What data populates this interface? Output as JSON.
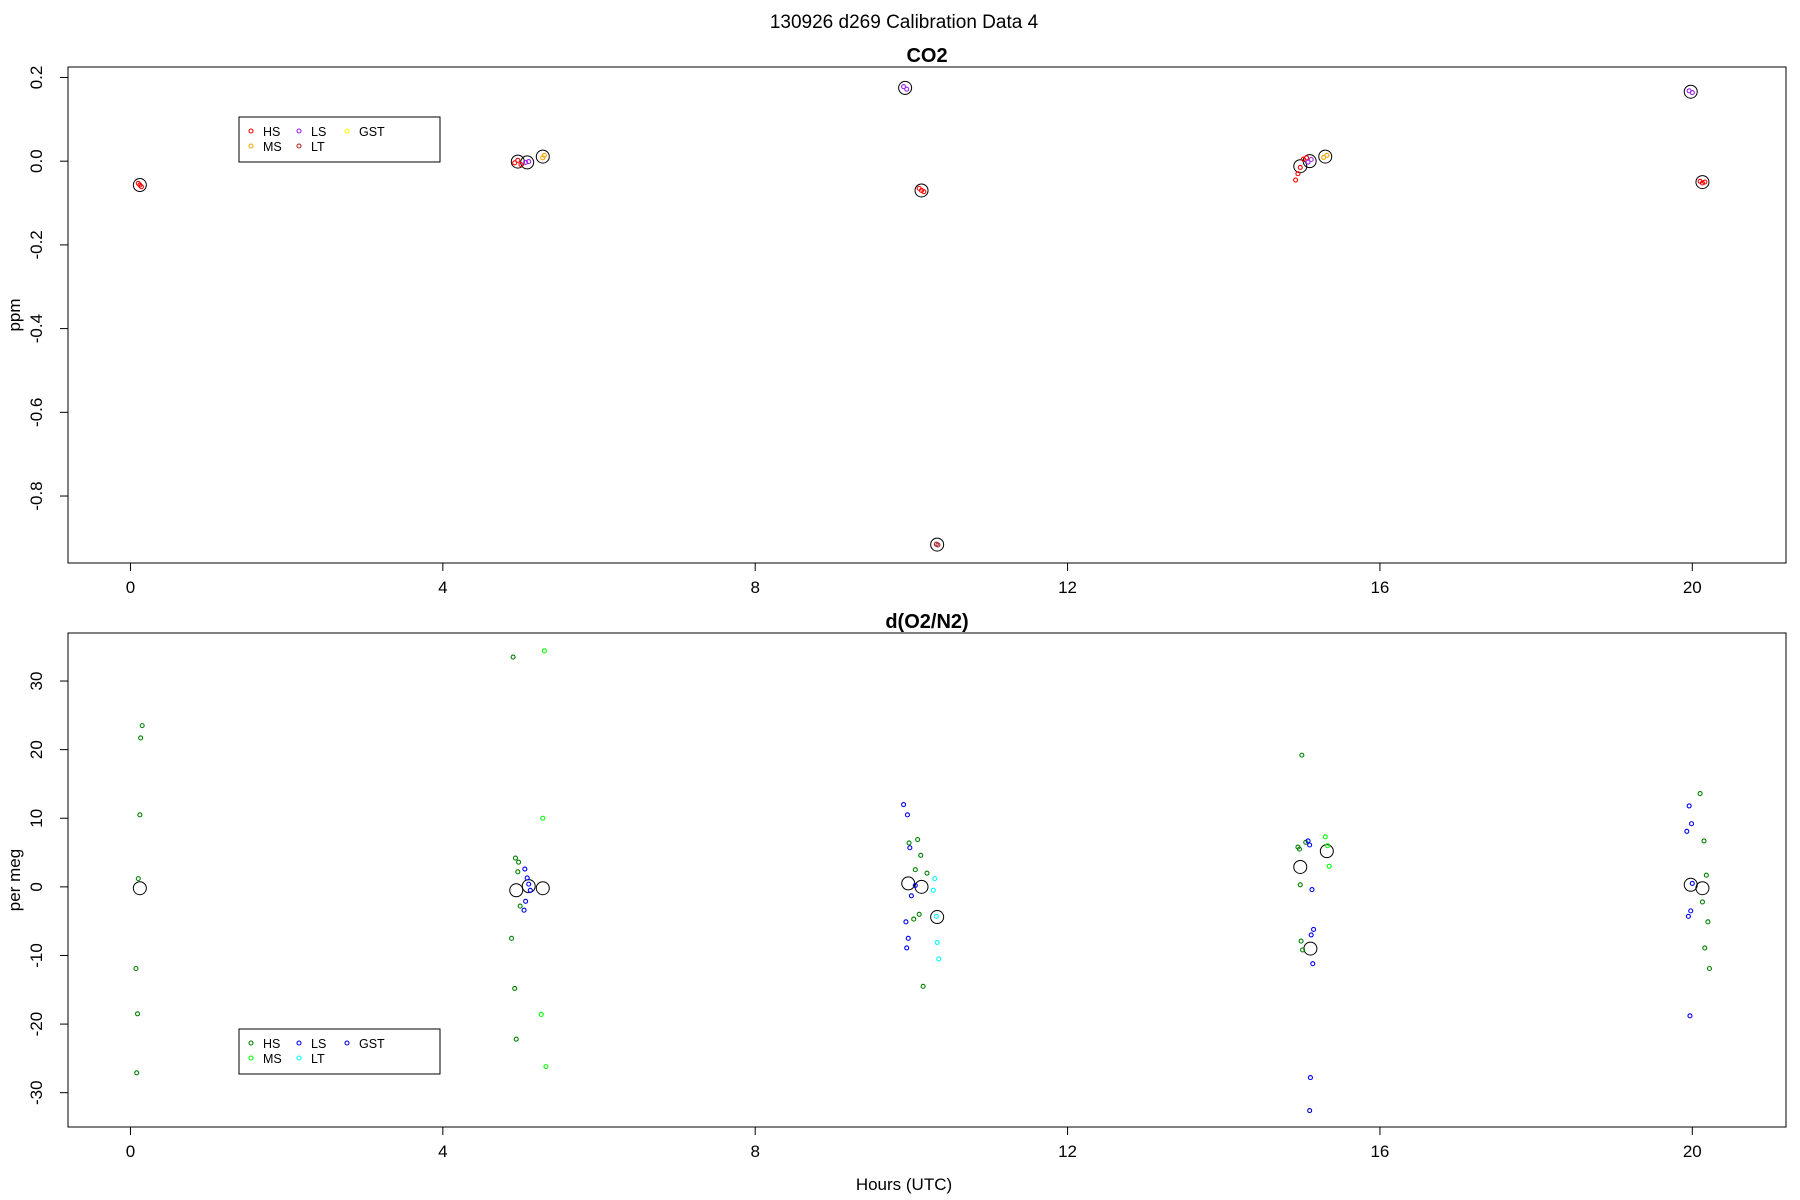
{
  "figure": {
    "title": "130926   d269   Calibration Data 4",
    "xlabel": "Hours (UTC)"
  },
  "colors": {
    "HS": "#ff0000",
    "MS": "#ffa500",
    "LS": "#a020f0",
    "LT": "#b22222",
    "GST": "#ffff00",
    "HS_o2": "#008000",
    "MS_o2": "#00ff00",
    "LS_o2": "#0000ff",
    "LT_o2": "#00ffff",
    "GST_o2": "#0000cd",
    "mean": "#000000"
  },
  "chart_data": [
    {
      "type": "scatter",
      "title": "CO2",
      "xlabel": "",
      "ylabel": "ppm",
      "xlim": [
        -0.8,
        21.2
      ],
      "ylim": [
        -0.96,
        0.225
      ],
      "xticks": [
        0,
        4,
        8,
        12,
        16,
        20
      ],
      "yticks": [
        -0.8,
        -0.6,
        -0.4,
        -0.2,
        0.0,
        0.2
      ],
      "ytick_labels": [
        "-0.8",
        "-0.6",
        "-0.4",
        "-0.2",
        "0.0",
        "0.2"
      ],
      "legend": {
        "position": "top-left",
        "entries": [
          {
            "label": "HS",
            "color": "HS"
          },
          {
            "label": "MS",
            "color": "MS"
          },
          {
            "label": "LS",
            "color": "LS"
          },
          {
            "label": "LT",
            "color": "LT"
          },
          {
            "label": "GST",
            "color": "GST"
          }
        ]
      },
      "series": [
        {
          "name": "HS",
          "color": "HS",
          "x": [
            0.1,
            0.12,
            0.14,
            4.92,
            4.96,
            5.0,
            10.1,
            10.13,
            10.16,
            14.92,
            14.95,
            14.98,
            15.02,
            15.06,
            20.1,
            20.13,
            20.16
          ],
          "y": [
            -0.053,
            -0.057,
            -0.061,
            -0.004,
            0.002,
            -0.008,
            -0.065,
            -0.07,
            -0.073,
            -0.045,
            -0.03,
            -0.015,
            0.005,
            0.008,
            -0.048,
            -0.052,
            -0.05
          ]
        },
        {
          "name": "MS",
          "color": "MS",
          "x": [
            5.28,
            5.3,
            15.28,
            15.32
          ],
          "y": [
            0.008,
            0.014,
            0.009,
            0.014
          ]
        },
        {
          "name": "LS",
          "color": "LS",
          "x": [
            5.06,
            5.1,
            9.9,
            9.94,
            15.08,
            15.12,
            19.96,
            20.0
          ],
          "y": [
            -0.003,
            -0.001,
            0.178,
            0.172,
            -0.002,
            0.004,
            0.168,
            0.164
          ]
        },
        {
          "name": "LT",
          "color": "LT",
          "x": [
            10.32,
            10.34
          ],
          "y": [
            -0.915,
            -0.917
          ]
        }
      ],
      "means": {
        "x": [
          0.12,
          4.96,
          5.08,
          5.28,
          9.92,
          10.13,
          10.33,
          14.98,
          15.1,
          15.3,
          19.98,
          20.13
        ],
        "y": [
          -0.057,
          -0.001,
          -0.003,
          0.011,
          0.175,
          -0.07,
          -0.916,
          -0.012,
          0.0,
          0.011,
          0.166,
          -0.05
        ]
      }
    },
    {
      "type": "scatter",
      "title": "d(O2/N2)",
      "xlabel": "Hours (UTC)",
      "ylabel": "per meg",
      "xlim": [
        -0.8,
        21.2
      ],
      "ylim": [
        -35,
        37
      ],
      "xticks": [
        0,
        4,
        8,
        12,
        16,
        20
      ],
      "yticks": [
        -30,
        -20,
        -10,
        0,
        10,
        20,
        30
      ],
      "ytick_labels": [
        "-30",
        "-20",
        "-10",
        "0",
        "10",
        "20",
        "30"
      ],
      "legend": {
        "position": "bottom-left",
        "entries": [
          {
            "label": "HS",
            "color": "HS_o2"
          },
          {
            "label": "MS",
            "color": "MS_o2"
          },
          {
            "label": "LS",
            "color": "LS_o2"
          },
          {
            "label": "LT",
            "color": "LT_o2"
          },
          {
            "label": "GST",
            "color": "GST_o2"
          }
        ]
      },
      "series": [
        {
          "name": "HS",
          "color": "HS_o2",
          "x": [
            0.15,
            0.13,
            0.12,
            0.1,
            0.07,
            0.09,
            0.08,
            4.9,
            4.93,
            4.97,
            4.99,
            4.88,
            4.92,
            4.94,
            4.96,
            9.97,
            10.05,
            10.08,
            10.12,
            10.1,
            10.03,
            10.15,
            10.2,
            14.95,
            15.0,
            14.97,
            14.98,
            14.99,
            15.01,
            15.05,
            20.1,
            20.15,
            20.18,
            20.13,
            20.2,
            20.16,
            20.22
          ],
          "y": [
            23.5,
            21.7,
            10.5,
            1.2,
            -11.9,
            -18.5,
            -27.1,
            33.5,
            4.2,
            3.6,
            -2.8,
            -7.5,
            -14.8,
            -22.2,
            2.2,
            6.4,
            2.5,
            6.9,
            4.6,
            -4.0,
            -4.7,
            -14.5,
            2.0,
            5.8,
            19.2,
            5.5,
            0.3,
            -7.9,
            -9.2,
            6.5,
            13.6,
            6.7,
            1.7,
            -2.2,
            -5.1,
            -8.9,
            -11.9
          ]
        },
        {
          "name": "MS",
          "color": "MS_o2",
          "x": [
            5.3,
            5.28,
            5.26,
            5.32,
            15.3,
            15.33,
            15.35
          ],
          "y": [
            34.4,
            10.0,
            -18.6,
            -26.2,
            7.3,
            6.0,
            3.0
          ]
        },
        {
          "name": "LS",
          "color": "LS_o2",
          "x": [
            5.05,
            5.08,
            5.1,
            5.12,
            5.06,
            5.04,
            9.9,
            9.95,
            9.98,
            10.0,
            9.93,
            9.96,
            9.94,
            10.05,
            15.08,
            15.1,
            15.13,
            15.15,
            15.12,
            15.14,
            15.11,
            19.93,
            19.96,
            19.99,
            20.0,
            19.98,
            19.95,
            19.97
          ],
          "y": [
            2.6,
            1.3,
            0.4,
            -0.5,
            -2.1,
            -3.4,
            12.0,
            10.5,
            5.7,
            -1.3,
            -5.1,
            -7.5,
            -8.9,
            0.2,
            6.7,
            6.1,
            -0.4,
            -6.2,
            -7.0,
            -11.2,
            -27.8,
            8.1,
            11.8,
            9.2,
            0.5,
            -3.5,
            -4.3,
            -18.8
          ]
        },
        {
          "name": "LT",
          "color": "LT_o2",
          "x": [
            10.28,
            10.3,
            10.33,
            10.35,
            10.32
          ],
          "y": [
            -0.5,
            1.2,
            -8.1,
            -10.5,
            -4.3
          ]
        },
        {
          "name": "GST",
          "color": "GST_o2",
          "x": [
            15.1
          ],
          "y": [
            -32.6
          ]
        }
      ],
      "means": {
        "x": [
          0.12,
          4.94,
          5.1,
          5.28,
          9.96,
          10.13,
          10.33,
          14.98,
          15.11,
          15.32,
          19.98,
          20.13
        ],
        "y": [
          -0.2,
          -0.5,
          0.1,
          -0.2,
          0.5,
          0.0,
          -4.4,
          2.9,
          -9.0,
          5.2,
          0.3,
          -0.2
        ]
      }
    }
  ]
}
